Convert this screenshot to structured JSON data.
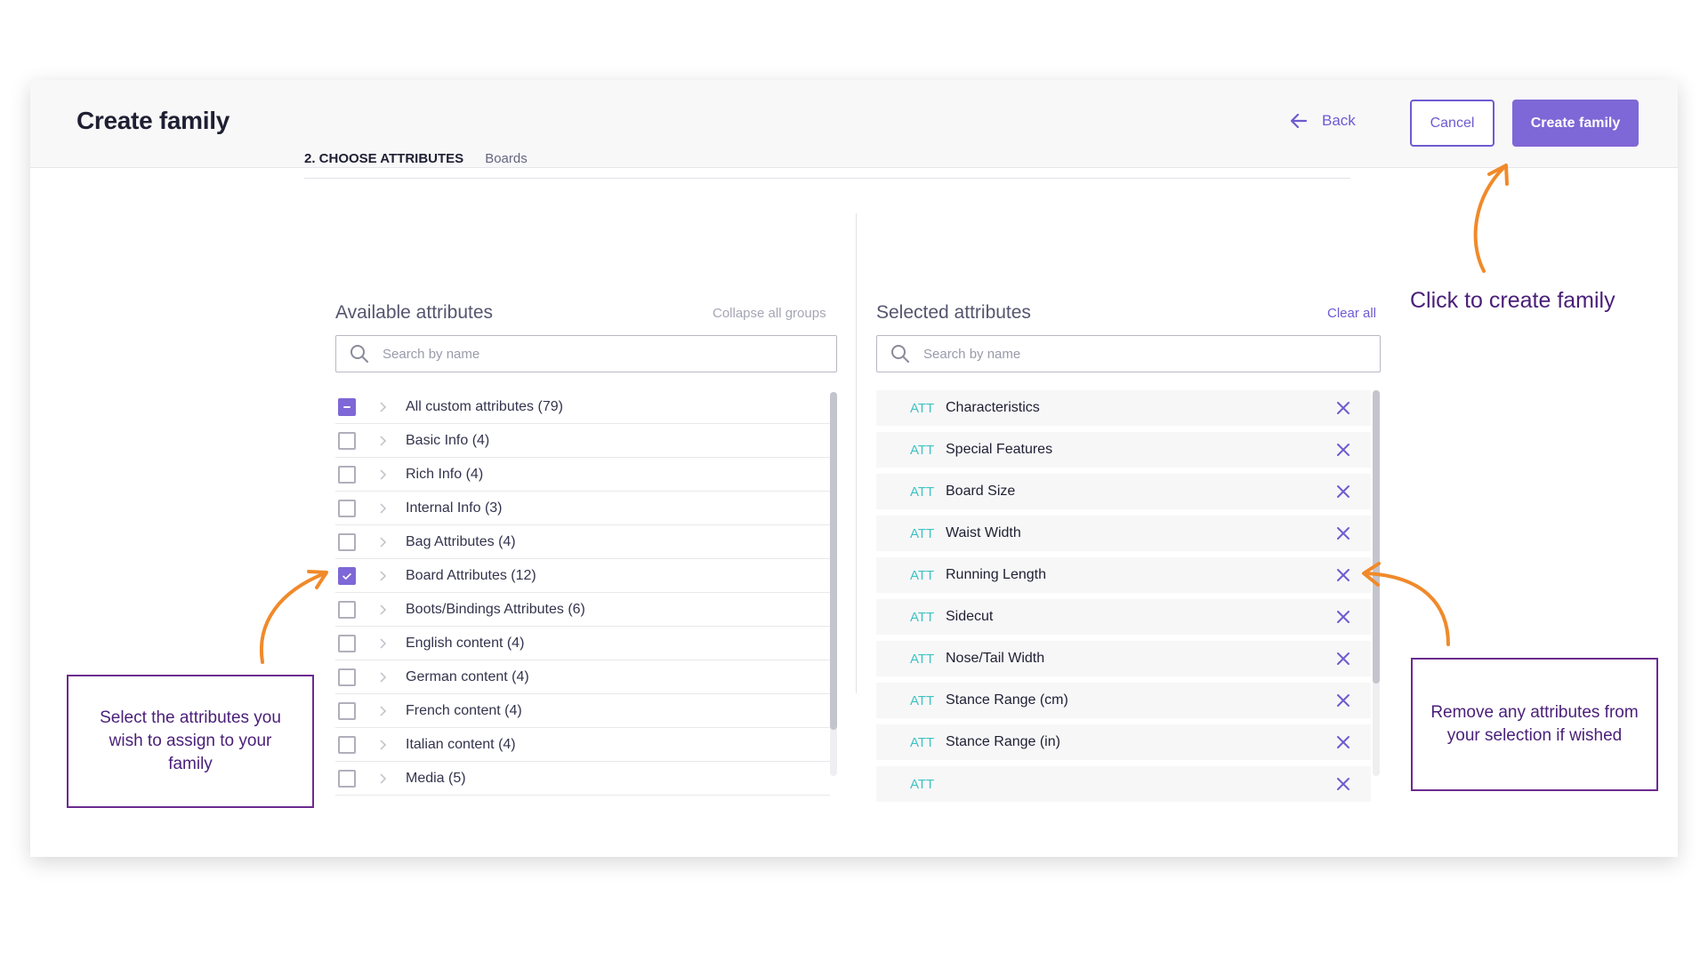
{
  "header": {
    "title": "Create family",
    "back_label": "Back",
    "cancel_label": "Cancel",
    "create_label": "Create family"
  },
  "step": {
    "label": "2. CHOOSE ATTRIBUTES",
    "name": "Boards"
  },
  "available": {
    "title": "Available attributes",
    "collapse_label": "Collapse all groups",
    "search_placeholder": "Search by name",
    "items": [
      {
        "label": "All custom attributes (79)",
        "state": "partial"
      },
      {
        "label": "Basic Info (4)",
        "state": "unchecked"
      },
      {
        "label": "Rich Info (4)",
        "state": "unchecked"
      },
      {
        "label": "Internal Info (3)",
        "state": "unchecked"
      },
      {
        "label": "Bag Attributes (4)",
        "state": "unchecked"
      },
      {
        "label": "Board Attributes (12)",
        "state": "checked"
      },
      {
        "label": "Boots/Bindings Attributes (6)",
        "state": "unchecked"
      },
      {
        "label": "English content (4)",
        "state": "unchecked"
      },
      {
        "label": "German content (4)",
        "state": "unchecked"
      },
      {
        "label": "French content (4)",
        "state": "unchecked"
      },
      {
        "label": "Italian content (4)",
        "state": "unchecked"
      },
      {
        "label": "Media (5)",
        "state": "unchecked"
      }
    ]
  },
  "selected": {
    "title": "Selected attributes",
    "clear_label": "Clear all",
    "search_placeholder": "Search by name",
    "tag": "ATT",
    "items": [
      "Characteristics",
      "Special Features",
      "Board Size",
      "Waist Width",
      "Running Length",
      "Sidecut",
      "Nose/Tail Width",
      "Stance Range (cm)",
      "Stance Range (in)",
      ""
    ]
  },
  "annotations": {
    "create": "Click to create family",
    "select": "Select the attributes you wish to assign to your family",
    "remove": "Remove any attributes from your selection if wished"
  },
  "colors": {
    "accent": "#7e67d6",
    "att_tag": "#3fc2c2",
    "annotation_arrow": "#f08a2a",
    "annotation_text": "#4a1f78"
  }
}
